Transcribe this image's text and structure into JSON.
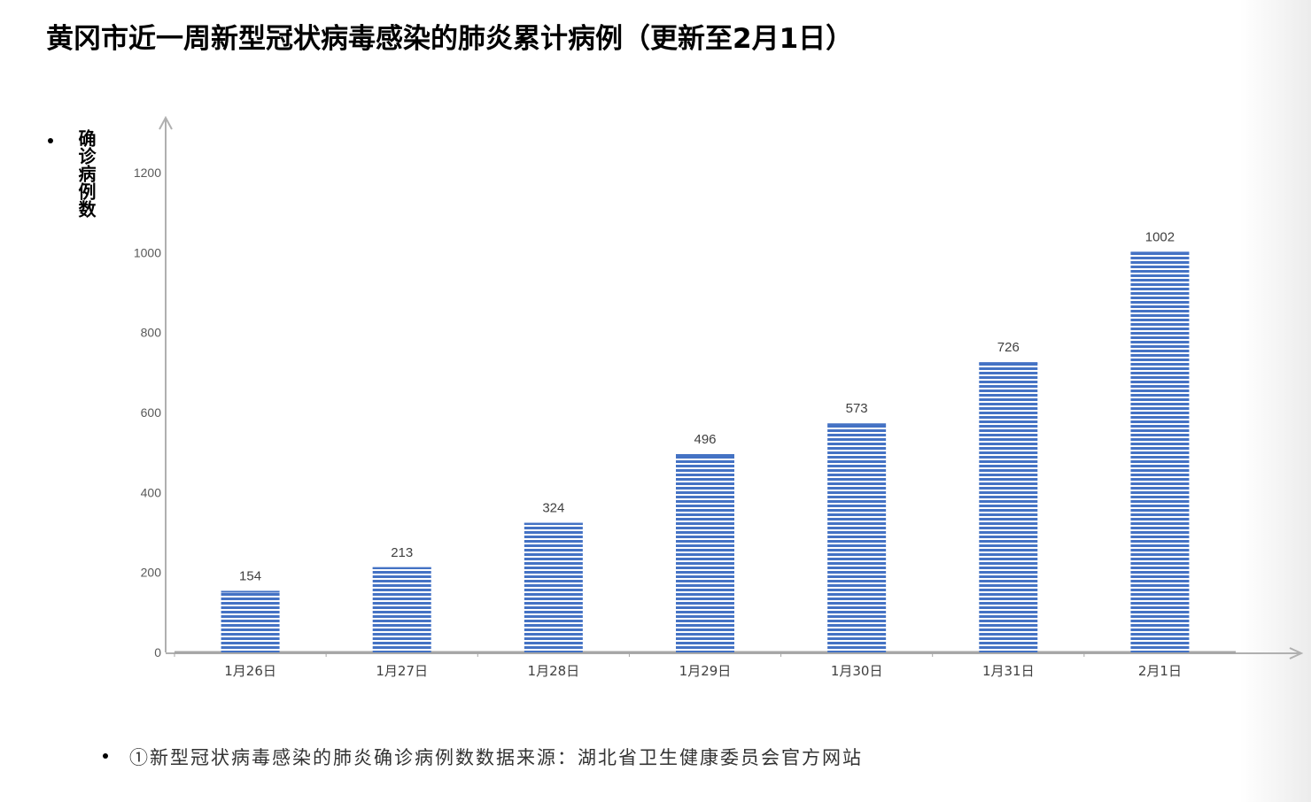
{
  "title": "黄冈市近一周新型冠状病毒感染的肺炎累计病例（更新至2月1日）",
  "footnote": "①新型冠状病毒感染的肺炎确诊病例数数据来源：湖北省卫生健康委员会官方网站",
  "chart_data": {
    "type": "bar",
    "title": "黄冈市近一周新型冠状病毒感染的肺炎累计病例（更新至2月1日）",
    "xlabel": "",
    "ylabel": "确诊病例数",
    "categories": [
      "1月26日",
      "1月27日",
      "1月28日",
      "1月29日",
      "1月30日",
      "1月31日",
      "2月1日"
    ],
    "values": [
      154,
      213,
      324,
      496,
      573,
      726,
      1002
    ],
    "ylim": [
      0,
      1200
    ],
    "yticks": [
      0,
      200,
      400,
      600,
      800,
      1000,
      1200
    ],
    "grid": false,
    "legend": "none",
    "data_labels": true,
    "bar_color": "#4472c4",
    "bar_pattern": "horizontal stripes"
  }
}
